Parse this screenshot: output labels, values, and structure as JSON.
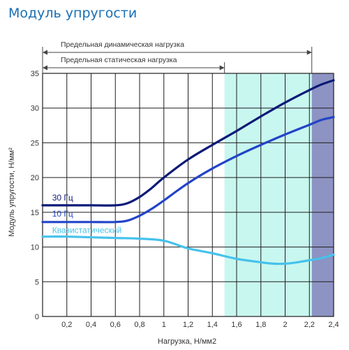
{
  "chart_data": {
    "type": "line",
    "title": "Модуль упругости",
    "xlabel": "Нагрузка, Н/мм2",
    "ylabel": "Модуль упругости, Н/мм²",
    "xlim": [
      0,
      2.4
    ],
    "ylim": [
      0,
      35
    ],
    "x_ticks": [
      0.2,
      0.4,
      0.6,
      0.8,
      1.0,
      1.2,
      1.4,
      1.6,
      1.8,
      2.0,
      2.2,
      2.4
    ],
    "x_tick_labels": [
      "0,2",
      "0,4",
      "0,6",
      "0,8",
      "1",
      "1,2",
      "1,4",
      "1,6",
      "1,8",
      "2",
      "2,2",
      "2,4"
    ],
    "y_ticks": [
      0,
      5,
      10,
      15,
      20,
      25,
      30,
      35
    ],
    "y_tick_labels": [
      "0",
      "5",
      "10",
      "15",
      "20",
      "25",
      "30",
      "35"
    ],
    "grid": true,
    "shaded_regions": [
      {
        "from": 1.5,
        "to": 2.22,
        "color": "#c8f7ef"
      },
      {
        "from": 2.22,
        "to": 2.4,
        "color": "#8d93c2"
      }
    ],
    "annotations": [
      {
        "text": "Предельная динамическая нагрузка",
        "from": 0,
        "to": 2.22
      },
      {
        "text": "Предельная статическая нагрузка",
        "from": 0,
        "to": 1.5
      }
    ],
    "series": [
      {
        "name": "30 Гц",
        "color": "#0d1a78",
        "label_x": 0.05,
        "label_y": 16.7,
        "x": [
          0,
          0.2,
          0.4,
          0.6,
          0.7,
          0.8,
          0.9,
          1.0,
          1.2,
          1.4,
          1.6,
          1.8,
          2.0,
          2.2,
          2.3,
          2.4
        ],
        "y": [
          16,
          16,
          16,
          16,
          16.3,
          17.2,
          18.5,
          20,
          22.6,
          24.7,
          26.7,
          28.8,
          30.8,
          32.6,
          33.4,
          34
        ]
      },
      {
        "name": "10 Гц",
        "color": "#2244c8",
        "label_x": 0.05,
        "label_y": 14.4,
        "x": [
          0,
          0.2,
          0.4,
          0.6,
          0.7,
          0.8,
          0.9,
          1.0,
          1.2,
          1.4,
          1.6,
          1.8,
          2.0,
          2.2,
          2.3,
          2.4
        ],
        "y": [
          13.6,
          13.6,
          13.6,
          13.6,
          13.8,
          14.5,
          15.5,
          16.7,
          19.2,
          21.3,
          23.1,
          24.7,
          26.2,
          27.6,
          28.3,
          28.7
        ]
      },
      {
        "name": "Квазистатический",
        "color": "#45c2ec",
        "label_x": 0.05,
        "label_y": 12.0,
        "x": [
          0,
          0.2,
          0.4,
          0.6,
          0.8,
          1.0,
          1.2,
          1.4,
          1.6,
          1.8,
          1.9,
          2.0,
          2.1,
          2.2,
          2.3,
          2.4
        ],
        "y": [
          11.5,
          11.5,
          11.4,
          11.3,
          11.2,
          10.9,
          9.8,
          9.1,
          8.3,
          7.8,
          7.6,
          7.6,
          7.8,
          8.1,
          8.4,
          8.9
        ]
      }
    ]
  }
}
